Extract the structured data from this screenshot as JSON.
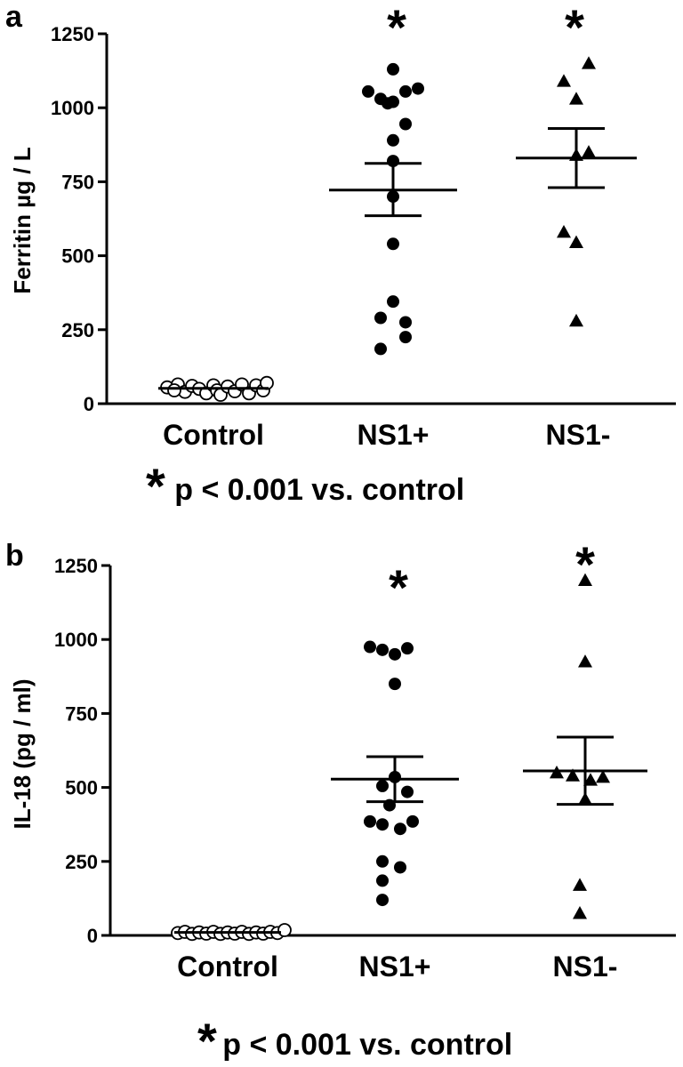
{
  "chart_data": [
    {
      "type": "scatter",
      "panel_label": "a",
      "ylabel": "Ferritin µg / L",
      "ylim": [
        0,
        1250
      ],
      "yticks": [
        "0",
        "250",
        "500",
        "750",
        "1000",
        "1250"
      ],
      "categories": [
        "Control",
        "NS1+",
        "NS1-"
      ],
      "significance_marks": [
        "",
        "*",
        "*"
      ],
      "footnote_star": "*",
      "footnote_text": "p < 0.001 vs. control",
      "groups": [
        {
          "name": "Control",
          "marker": "open-circle",
          "points": [
            {
              "dx": -0.26,
              "y": 55
            },
            {
              "dx": -0.2,
              "y": 65
            },
            {
              "dx": -0.16,
              "y": 40
            },
            {
              "dx": -0.12,
              "y": 60
            },
            {
              "dx": -0.08,
              "y": 50
            },
            {
              "dx": -0.04,
              "y": 35
            },
            {
              "dx": 0.0,
              "y": 62
            },
            {
              "dx": 0.02,
              "y": 45
            },
            {
              "dx": 0.04,
              "y": 30
            },
            {
              "dx": 0.08,
              "y": 58
            },
            {
              "dx": 0.12,
              "y": 42
            },
            {
              "dx": 0.16,
              "y": 65
            },
            {
              "dx": 0.2,
              "y": 35
            },
            {
              "dx": 0.24,
              "y": 62
            },
            {
              "dx": 0.28,
              "y": 45
            },
            {
              "dx": 0.3,
              "y": 70
            },
            {
              "dx": -0.22,
              "y": 45
            }
          ],
          "mean": 52,
          "sem_low": 47,
          "sem_high": 57
        },
        {
          "name": "NS1+",
          "marker": "filled-circle",
          "points": [
            {
              "dx": 0.0,
              "y": 1130
            },
            {
              "dx": -0.14,
              "y": 1055
            },
            {
              "dx": -0.07,
              "y": 1030
            },
            {
              "dx": 0.0,
              "y": 1020
            },
            {
              "dx": 0.07,
              "y": 1055
            },
            {
              "dx": 0.14,
              "y": 1065
            },
            {
              "dx": -0.03,
              "y": 1015
            },
            {
              "dx": 0.07,
              "y": 945
            },
            {
              "dx": 0.0,
              "y": 890
            },
            {
              "dx": 0.0,
              "y": 820
            },
            {
              "dx": 0.0,
              "y": 700
            },
            {
              "dx": 0.0,
              "y": 540
            },
            {
              "dx": 0.0,
              "y": 345
            },
            {
              "dx": -0.07,
              "y": 290
            },
            {
              "dx": 0.07,
              "y": 275
            },
            {
              "dx": 0.07,
              "y": 225
            },
            {
              "dx": -0.07,
              "y": 185
            }
          ],
          "mean": 722,
          "sem_low": 635,
          "sem_high": 812
        },
        {
          "name": "NS1-",
          "marker": "filled-triangle",
          "points": [
            {
              "dx": 0.07,
              "y": 1150
            },
            {
              "dx": -0.07,
              "y": 1090
            },
            {
              "dx": 0.0,
              "y": 1030
            },
            {
              "dx": 0.0,
              "y": 840
            },
            {
              "dx": 0.07,
              "y": 850
            },
            {
              "dx": -0.07,
              "y": 580
            },
            {
              "dx": 0.0,
              "y": 545
            },
            {
              "dx": 0.0,
              "y": 280
            }
          ],
          "mean": 830,
          "sem_low": 730,
          "sem_high": 930
        }
      ]
    },
    {
      "type": "scatter",
      "panel_label": "b",
      "ylabel": "IL-18 (pg / ml)",
      "ylim": [
        0,
        1250
      ],
      "yticks": [
        "0",
        "250",
        "500",
        "750",
        "1000",
        "1250"
      ],
      "categories": [
        "Control",
        "NS1+",
        "NS1-"
      ],
      "significance_marks": [
        "",
        "*",
        "*"
      ],
      "footnote_star": "*",
      "footnote_text": "p < 0.001 vs. control",
      "groups": [
        {
          "name": "Control",
          "marker": "open-circle",
          "points": [
            {
              "dx": -0.28,
              "y": 8
            },
            {
              "dx": -0.24,
              "y": 12
            },
            {
              "dx": -0.2,
              "y": 5
            },
            {
              "dx": -0.16,
              "y": 10
            },
            {
              "dx": -0.12,
              "y": 6
            },
            {
              "dx": -0.08,
              "y": 12
            },
            {
              "dx": -0.04,
              "y": 5
            },
            {
              "dx": 0.0,
              "y": 10
            },
            {
              "dx": 0.04,
              "y": 6
            },
            {
              "dx": 0.08,
              "y": 12
            },
            {
              "dx": 0.12,
              "y": 5
            },
            {
              "dx": 0.16,
              "y": 10
            },
            {
              "dx": 0.2,
              "y": 6
            },
            {
              "dx": 0.24,
              "y": 12
            },
            {
              "dx": 0.28,
              "y": 8
            },
            {
              "dx": 0.32,
              "y": 18
            }
          ],
          "mean": 10,
          "sem_low": 8,
          "sem_high": 12
        },
        {
          "name": "NS1+",
          "marker": "filled-circle",
          "points": [
            {
              "dx": -0.14,
              "y": 975
            },
            {
              "dx": -0.07,
              "y": 965
            },
            {
              "dx": 0.0,
              "y": 950
            },
            {
              "dx": 0.07,
              "y": 970
            },
            {
              "dx": 0.0,
              "y": 850
            },
            {
              "dx": 0.0,
              "y": 535
            },
            {
              "dx": -0.07,
              "y": 505
            },
            {
              "dx": 0.07,
              "y": 485
            },
            {
              "dx": -0.03,
              "y": 440
            },
            {
              "dx": -0.14,
              "y": 385
            },
            {
              "dx": -0.07,
              "y": 375
            },
            {
              "dx": 0.03,
              "y": 360
            },
            {
              "dx": 0.1,
              "y": 385
            },
            {
              "dx": -0.07,
              "y": 250
            },
            {
              "dx": 0.03,
              "y": 230
            },
            {
              "dx": -0.07,
              "y": 185
            },
            {
              "dx": -0.07,
              "y": 120
            }
          ],
          "mean": 528,
          "sem_low": 452,
          "sem_high": 604
        },
        {
          "name": "NS1-",
          "marker": "filled-triangle",
          "points": [
            {
              "dx": 0.0,
              "y": 1200
            },
            {
              "dx": 0.0,
              "y": 925
            },
            {
              "dx": -0.16,
              "y": 550
            },
            {
              "dx": -0.07,
              "y": 540
            },
            {
              "dx": 0.03,
              "y": 525
            },
            {
              "dx": 0.1,
              "y": 535
            },
            {
              "dx": 0.0,
              "y": 460
            },
            {
              "dx": -0.03,
              "y": 170
            },
            {
              "dx": -0.03,
              "y": 75
            }
          ],
          "mean": 556,
          "sem_low": 443,
          "sem_high": 670
        }
      ]
    }
  ]
}
